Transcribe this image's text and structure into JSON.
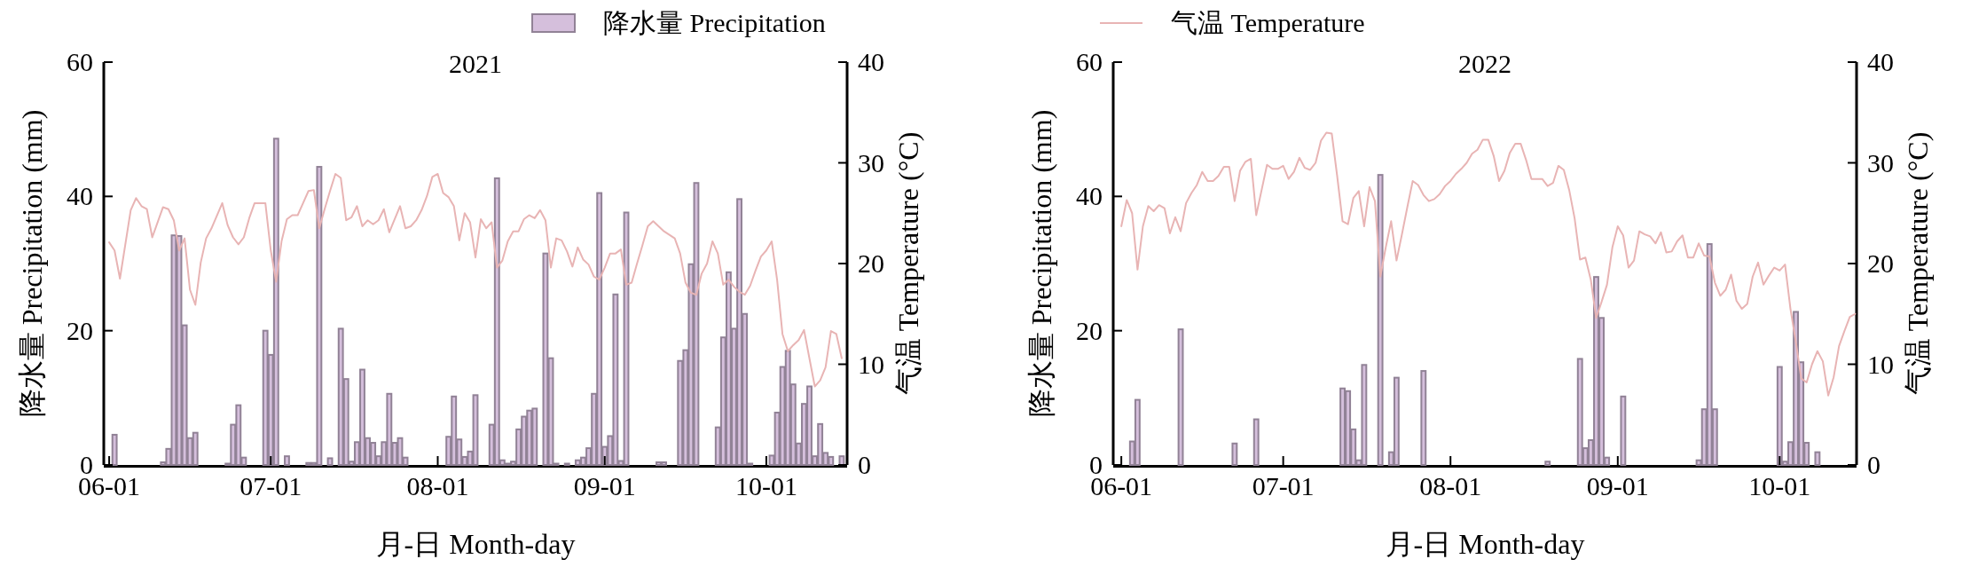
{
  "chart_data": [
    {
      "type": "bar",
      "title": "2021",
      "xlabel": "月-日 Month-day",
      "ylabel": "降水量 Precipitation (mm)",
      "y2label": "气温 Temperature (°C)",
      "legend": "top",
      "xlim": [
        "2021-05-31",
        "2021-10-16"
      ],
      "xticks": [
        {
          "value": "2021-06-01",
          "label": "06-01"
        },
        {
          "value": "2021-07-01",
          "label": "07-01"
        },
        {
          "value": "2021-08-01",
          "label": "08-01"
        },
        {
          "value": "2021-09-01",
          "label": "09-01"
        },
        {
          "value": "2021-10-01",
          "label": "10-01"
        }
      ],
      "ylim": [
        0,
        60
      ],
      "yticks": [
        0,
        20,
        40,
        60
      ],
      "y2lim": [
        0,
        40
      ],
      "y2ticks": [
        0,
        10,
        20,
        30,
        40
      ],
      "series": [
        {
          "name": "降水量 Precipitation",
          "color": "#d5bfdc",
          "x": [
            "2021-06-02",
            "2021-06-11",
            "2021-06-12",
            "2021-06-13",
            "2021-06-14",
            "2021-06-15",
            "2021-06-16",
            "2021-06-17",
            "2021-06-23",
            "2021-06-24",
            "2021-06-25",
            "2021-06-26",
            "2021-06-30",
            "2021-07-01",
            "2021-07-02",
            "2021-07-04",
            "2021-07-08",
            "2021-07-09",
            "2021-07-10",
            "2021-07-12",
            "2021-07-14",
            "2021-07-15",
            "2021-07-16",
            "2021-07-17",
            "2021-07-18",
            "2021-07-19",
            "2021-07-20",
            "2021-07-21",
            "2021-07-22",
            "2021-07-23",
            "2021-07-24",
            "2021-07-25",
            "2021-07-26",
            "2021-08-03",
            "2021-08-04",
            "2021-08-05",
            "2021-08-06",
            "2021-08-07",
            "2021-08-08",
            "2021-08-11",
            "2021-08-12",
            "2021-08-13",
            "2021-08-14",
            "2021-08-15",
            "2021-08-16",
            "2021-08-17",
            "2021-08-18",
            "2021-08-19",
            "2021-08-21",
            "2021-08-22",
            "2021-08-23",
            "2021-08-25",
            "2021-08-27",
            "2021-08-28",
            "2021-08-29",
            "2021-08-30",
            "2021-08-31",
            "2021-09-01",
            "2021-09-02",
            "2021-09-03",
            "2021-09-04",
            "2021-09-05",
            "2021-09-11",
            "2021-09-12",
            "2021-09-15",
            "2021-09-16",
            "2021-09-17",
            "2021-09-18",
            "2021-09-22",
            "2021-09-23",
            "2021-09-24",
            "2021-09-25",
            "2021-09-26",
            "2021-09-27",
            "2021-09-28",
            "2021-10-02",
            "2021-10-03",
            "2021-10-04",
            "2021-10-05",
            "2021-10-06",
            "2021-10-07",
            "2021-10-08",
            "2021-10-09",
            "2021-10-10",
            "2021-10-11",
            "2021-10-12",
            "2021-10-13",
            "2021-10-15"
          ],
          "values": [
            4.5,
            0.4,
            2.4,
            34.2,
            34.1,
            20.8,
            4.0,
            4.8,
            0.2,
            6.0,
            8.9,
            1.1,
            20.0,
            16.4,
            48.6,
            1.3,
            0.3,
            0.3,
            44.4,
            1.0,
            20.3,
            12.8,
            0.5,
            3.4,
            14.2,
            4.0,
            3.3,
            1.3,
            3.4,
            10.6,
            3.3,
            4.0,
            1.1,
            4.2,
            10.2,
            3.8,
            1.2,
            2.0,
            10.4,
            6.0,
            42.7,
            0.7,
            0.2,
            0.5,
            5.3,
            7.2,
            8.1,
            8.4,
            31.5,
            15.9,
            0.2,
            0.2,
            0.7,
            1.1,
            2.5,
            10.6,
            40.5,
            2.7,
            4.3,
            25.4,
            0.6,
            37.6,
            0.4,
            0.4,
            15.5,
            17.1,
            29.9,
            42.0,
            5.6,
            19.0,
            28.7,
            20.3,
            39.6,
            22.5,
            0.2,
            1.4,
            7.8,
            14.6,
            17.0,
            12.0,
            3.2,
            9.1,
            11.7,
            1.3,
            6.1,
            1.8,
            1.2,
            1.3
          ]
        },
        {
          "name": "气温 Temperature",
          "type": "line",
          "axis": "y2",
          "color": "#e8b4b4",
          "x": [
            "2021-06-01",
            "2021-06-02",
            "2021-06-03",
            "2021-06-05",
            "2021-06-06",
            "2021-06-07",
            "2021-06-08",
            "2021-06-09",
            "2021-06-11",
            "2021-06-12",
            "2021-06-13",
            "2021-06-14",
            "2021-06-15",
            "2021-06-16",
            "2021-06-17",
            "2021-06-18",
            "2021-06-19",
            "2021-06-20",
            "2021-06-22",
            "2021-06-23",
            "2021-06-24",
            "2021-06-25",
            "2021-06-26",
            "2021-06-27",
            "2021-06-28",
            "2021-06-30",
            "2021-07-01",
            "2021-07-02",
            "2021-07-03",
            "2021-07-04",
            "2021-07-05",
            "2021-07-06",
            "2021-07-07",
            "2021-07-08",
            "2021-07-09",
            "2021-07-10",
            "2021-07-11",
            "2021-07-12",
            "2021-07-13",
            "2021-07-14",
            "2021-07-15",
            "2021-07-16",
            "2021-07-17",
            "2021-07-18",
            "2021-07-19",
            "2021-07-20",
            "2021-07-21",
            "2021-07-22",
            "2021-07-23",
            "2021-07-25",
            "2021-07-26",
            "2021-07-27",
            "2021-07-28",
            "2021-07-29",
            "2021-07-30",
            "2021-07-31",
            "2021-08-01",
            "2021-08-02",
            "2021-08-03",
            "2021-08-04",
            "2021-08-05",
            "2021-08-06",
            "2021-08-07",
            "2021-08-08",
            "2021-08-09",
            "2021-08-10",
            "2021-08-11",
            "2021-08-12",
            "2021-08-13",
            "2021-08-14",
            "2021-08-15",
            "2021-08-16",
            "2021-08-17",
            "2021-08-18",
            "2021-08-19",
            "2021-08-20",
            "2021-08-21",
            "2021-08-22",
            "2021-08-23",
            "2021-08-24",
            "2021-08-25",
            "2021-08-26",
            "2021-08-27",
            "2021-08-28",
            "2021-08-29",
            "2021-08-30",
            "2021-08-31",
            "2021-09-01",
            "2021-09-02",
            "2021-09-03",
            "2021-09-04",
            "2021-09-05",
            "2021-09-06",
            "2021-09-07",
            "2021-09-08",
            "2021-09-09",
            "2021-09-10",
            "2021-09-11",
            "2021-09-12",
            "2021-09-14",
            "2021-09-15",
            "2021-09-16",
            "2021-09-17",
            "2021-09-18",
            "2021-09-19",
            "2021-09-20",
            "2021-09-21",
            "2021-09-22",
            "2021-09-23",
            "2021-09-24",
            "2021-09-25",
            "2021-09-26",
            "2021-09-27",
            "2021-09-28",
            "2021-09-29",
            "2021-09-30",
            "2021-10-01",
            "2021-10-02",
            "2021-10-03",
            "2021-10-04",
            "2021-10-05",
            "2021-10-06",
            "2021-10-07",
            "2021-10-08",
            "2021-10-09",
            "2021-10-10",
            "2021-10-11",
            "2021-10-12",
            "2021-10-13",
            "2021-10-14",
            "2021-10-15"
          ],
          "values": [
            22.1,
            21.3,
            18.5,
            25.3,
            26.5,
            25.7,
            25.4,
            22.6,
            25.6,
            25.4,
            24.3,
            21.3,
            22.5,
            17.4,
            15.9,
            20.1,
            22.5,
            23.5,
            26.0,
            23.8,
            22.6,
            21.9,
            22.6,
            24.5,
            26.0,
            26.0,
            21.3,
            18.2,
            22.2,
            24.4,
            24.8,
            24.8,
            26.0,
            27.2,
            27.3,
            23.5,
            25.4,
            27.2,
            28.9,
            28.5,
            24.3,
            24.6,
            25.7,
            23.7,
            24.3,
            23.9,
            24.3,
            25.4,
            23.1,
            25.7,
            23.5,
            23.7,
            24.3,
            25.3,
            26.7,
            28.6,
            28.9,
            27.0,
            26.6,
            25.7,
            22.3,
            25.0,
            24.1,
            20.6,
            24.4,
            23.5,
            24.1,
            19.6,
            20.3,
            22.2,
            23.2,
            23.2,
            24.4,
            24.8,
            24.5,
            25.3,
            24.3,
            19.6,
            22.5,
            22.3,
            21.2,
            19.7,
            21.6,
            20.4,
            19.9,
            18.7,
            18.4,
            19.6,
            21.0,
            21.0,
            21.4,
            17.9,
            18.1,
            20.0,
            21.8,
            23.7,
            24.2,
            23.7,
            23.2,
            22.5,
            21.0,
            18.1,
            17.1,
            16.9,
            19.0,
            20.0,
            22.2,
            21.0,
            17.9,
            18.4,
            17.7,
            17.2,
            16.9,
            17.8,
            19.3,
            20.7,
            21.3,
            22.2,
            18.4,
            13.0,
            11.3,
            11.9,
            12.4,
            13.4,
            10.6,
            7.8,
            8.4,
            9.7,
            13.3,
            13.0,
            10.6
          ]
        }
      ]
    },
    {
      "type": "bar",
      "title": "2022",
      "xlabel": "月-日 Month-day",
      "ylabel": "降水量 Precipitation (mm)",
      "y2label": "气温 Temperature (°C)",
      "xlim": [
        "2022-05-30T12:00",
        "2022-10-15T06:00"
      ],
      "xticks": [
        {
          "value": "2022-06-01",
          "label": "06-01"
        },
        {
          "value": "2022-07-01",
          "label": "07-01"
        },
        {
          "value": "2022-08-01",
          "label": "08-01"
        },
        {
          "value": "2022-09-01",
          "label": "09-01"
        },
        {
          "value": "2022-10-01",
          "label": "10-01"
        }
      ],
      "ylim": [
        0,
        60
      ],
      "yticks": [
        0,
        20,
        40,
        60
      ],
      "y2lim": [
        0,
        40
      ],
      "y2ticks": [
        0,
        10,
        20,
        30,
        40
      ],
      "series": [
        {
          "color": "#d5bfdc",
          "x": [
            "2022-06-03",
            "2022-06-04",
            "2022-06-12",
            "2022-06-22",
            "2022-06-26",
            "2022-07-12",
            "2022-07-13",
            "2022-07-14",
            "2022-07-15",
            "2022-07-16",
            "2022-07-19",
            "2022-07-21",
            "2022-07-22",
            "2022-07-27",
            "2022-08-19",
            "2022-08-25",
            "2022-08-26",
            "2022-08-27",
            "2022-08-28",
            "2022-08-29",
            "2022-08-30",
            "2022-09-02",
            "2022-09-16",
            "2022-09-17",
            "2022-09-18",
            "2022-09-19",
            "2022-10-01",
            "2022-10-02",
            "2022-10-03",
            "2022-10-04",
            "2022-10-05",
            "2022-10-06",
            "2022-10-08"
          ],
          "values": [
            3.5,
            9.7,
            20.2,
            3.2,
            6.8,
            11.4,
            11.0,
            5.3,
            0.7,
            14.9,
            43.2,
            1.9,
            13.0,
            14.0,
            0.5,
            15.8,
            2.5,
            3.7,
            28.0,
            21.9,
            1.1,
            10.2,
            0.7,
            8.3,
            32.9,
            8.3,
            14.6,
            0.5,
            3.4,
            22.8,
            15.3,
            3.3,
            1.9
          ]
        },
        {
          "type": "line",
          "axis": "y2",
          "color": "#e8b4b4",
          "x": [
            "2022-06-01",
            "2022-06-02",
            "2022-06-03",
            "2022-06-04",
            "2022-06-05",
            "2022-06-06",
            "2022-06-07",
            "2022-06-08",
            "2022-06-09",
            "2022-06-10",
            "2022-06-11",
            "2022-06-12",
            "2022-06-13",
            "2022-06-14",
            "2022-06-15",
            "2022-06-16",
            "2022-06-17",
            "2022-06-18",
            "2022-06-19",
            "2022-06-20",
            "2022-06-21",
            "2022-06-22",
            "2022-06-23",
            "2022-06-24",
            "2022-06-25",
            "2022-06-26",
            "2022-06-27",
            "2022-06-28",
            "2022-06-29",
            "2022-06-30",
            "2022-07-01",
            "2022-07-02",
            "2022-07-03",
            "2022-07-04",
            "2022-07-05",
            "2022-07-06",
            "2022-07-07",
            "2022-07-08",
            "2022-07-09",
            "2022-07-10",
            "2022-07-11",
            "2022-07-12",
            "2022-07-13",
            "2022-07-14",
            "2022-07-15",
            "2022-07-16",
            "2022-07-17",
            "2022-07-18",
            "2022-07-19",
            "2022-07-20",
            "2022-07-21",
            "2022-07-22",
            "2022-07-23",
            "2022-07-24",
            "2022-07-25",
            "2022-07-26",
            "2022-07-27",
            "2022-07-28",
            "2022-07-29",
            "2022-07-30",
            "2022-07-31",
            "2022-08-01",
            "2022-08-02",
            "2022-08-03",
            "2022-08-04",
            "2022-08-05",
            "2022-08-06",
            "2022-08-07",
            "2022-08-08",
            "2022-08-09",
            "2022-08-10",
            "2022-08-11",
            "2022-08-12",
            "2022-08-13",
            "2022-08-14",
            "2022-08-15",
            "2022-08-16",
            "2022-08-17",
            "2022-08-18",
            "2022-08-19",
            "2022-08-20",
            "2022-08-21",
            "2022-08-22",
            "2022-08-23",
            "2022-08-24",
            "2022-08-25",
            "2022-08-26",
            "2022-08-27",
            "2022-08-28",
            "2022-08-29",
            "2022-08-30",
            "2022-08-31",
            "2022-09-01",
            "2022-09-02",
            "2022-09-03",
            "2022-09-04",
            "2022-09-05",
            "2022-09-06",
            "2022-09-07",
            "2022-09-08",
            "2022-09-09",
            "2022-09-10",
            "2022-09-11",
            "2022-09-12",
            "2022-09-13",
            "2022-09-14",
            "2022-09-15",
            "2022-09-16",
            "2022-09-17",
            "2022-09-18",
            "2022-09-19",
            "2022-09-20",
            "2022-09-21",
            "2022-09-22",
            "2022-09-23",
            "2022-09-24",
            "2022-09-25",
            "2022-09-26",
            "2022-09-27",
            "2022-09-28",
            "2022-09-29",
            "2022-09-30",
            "2022-10-01",
            "2022-10-02",
            "2022-10-03",
            "2022-10-04",
            "2022-10-05",
            "2022-10-06",
            "2022-10-07",
            "2022-10-08",
            "2022-10-09",
            "2022-10-10",
            "2022-10-11",
            "2022-10-12",
            "2022-10-13",
            "2022-10-14",
            "2022-10-15"
          ],
          "values": [
            23.7,
            26.3,
            25.0,
            19.4,
            23.7,
            25.7,
            25.2,
            25.8,
            25.5,
            23.0,
            24.6,
            23.2,
            26.0,
            27.0,
            27.8,
            29.1,
            28.2,
            28.2,
            28.7,
            29.6,
            29.6,
            26.2,
            29.2,
            30.1,
            30.4,
            24.8,
            27.3,
            29.8,
            29.4,
            29.4,
            29.7,
            28.4,
            29.1,
            30.5,
            29.5,
            29.3,
            30.0,
            32.2,
            33.0,
            32.9,
            28.7,
            24.2,
            23.9,
            26.5,
            27.2,
            23.7,
            27.6,
            26.2,
            18.7,
            21.6,
            24.2,
            20.3,
            22.9,
            25.6,
            28.2,
            27.8,
            26.8,
            26.2,
            26.4,
            26.9,
            27.7,
            28.2,
            28.9,
            29.4,
            30.0,
            30.9,
            31.3,
            32.3,
            32.3,
            30.7,
            28.2,
            29.2,
            31.0,
            31.9,
            31.9,
            30.3,
            28.4,
            28.4,
            28.4,
            27.7,
            28.0,
            29.7,
            29.3,
            27.3,
            24.5,
            20.4,
            20.6,
            18.4,
            14.6,
            16.2,
            17.9,
            21.6,
            23.7,
            22.8,
            19.6,
            20.3,
            23.2,
            22.9,
            22.7,
            22.0,
            23.1,
            21.1,
            21.2,
            22.2,
            22.8,
            20.6,
            20.6,
            22.0,
            20.8,
            20.7,
            18.1,
            16.8,
            17.4,
            18.9,
            16.3,
            15.5,
            16.0,
            18.7,
            20.1,
            17.9,
            18.8,
            19.6,
            19.3,
            19.9,
            15.5,
            12.2,
            8.6,
            8.2,
            10.0,
            11.3,
            10.3,
            6.9,
            8.7,
            11.8,
            13.3,
            14.7,
            15.0
          ]
        }
      ]
    }
  ]
}
